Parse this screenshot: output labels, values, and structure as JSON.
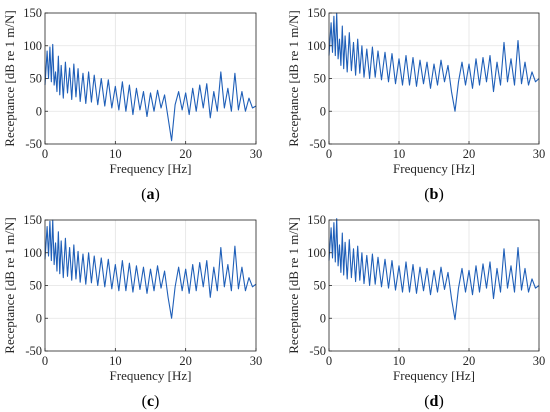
{
  "chart_data": [
    {
      "type": "line",
      "panel_label_open": "(",
      "panel_label": "a",
      "panel_label_close": ")",
      "xlabel": "Frequency [Hz]",
      "ylabel": "Receptance [dB re 1 m/N]",
      "xlim": [
        0,
        30
      ],
      "ylim": [
        -50,
        150
      ],
      "xticks": [
        0,
        10,
        20,
        30
      ],
      "yticks": [
        -50,
        0,
        50,
        100,
        150
      ],
      "grid": true,
      "series": [
        {
          "color": "#1f5fb8",
          "x": [
            0,
            0.3,
            0.5,
            0.7,
            0.9,
            1.1,
            1.3,
            1.5,
            1.7,
            1.9,
            2.1,
            2.3,
            2.6,
            2.9,
            3.2,
            3.5,
            3.8,
            4.1,
            4.4,
            4.7,
            5.0,
            5.4,
            5.8,
            6.2,
            6.6,
            7.0,
            7.5,
            8.0,
            8.5,
            9.0,
            9.5,
            10.0,
            10.5,
            11.0,
            11.5,
            12.0,
            12.5,
            13.0,
            13.5,
            14.0,
            14.5,
            15.0,
            15.5,
            16.0,
            16.5,
            17.0,
            17.5,
            18.0,
            18.5,
            19.0,
            19.5,
            20.0,
            20.5,
            21.0,
            21.5,
            22.0,
            22.5,
            23.0,
            23.5,
            24.0,
            24.5,
            25.0,
            25.5,
            26.0,
            26.5,
            27.0,
            27.5,
            28.0,
            28.5,
            29.0,
            29.5,
            30.0
          ],
          "y": [
            40,
            92,
            50,
            98,
            45,
            102,
            40,
            60,
            30,
            84,
            25,
            70,
            20,
            75,
            28,
            66,
            18,
            72,
            22,
            65,
            15,
            58,
            12,
            60,
            14,
            55,
            10,
            50,
            8,
            48,
            5,
            38,
            2,
            45,
            0,
            40,
            -5,
            35,
            2,
            30,
            -8,
            28,
            0,
            32,
            5,
            25,
            -10,
            -45,
            10,
            30,
            2,
            28,
            -5,
            35,
            0,
            40,
            5,
            42,
            -10,
            30,
            0,
            60,
            5,
            35,
            0,
            58,
            2,
            30,
            0,
            20,
            5,
            8
          ]
        }
      ]
    },
    {
      "type": "line",
      "panel_label_open": "(",
      "panel_label": "b",
      "panel_label_close": ")",
      "xlabel": "Frequency [Hz]",
      "ylabel": "Receptance [dB re 1 m/N]",
      "xlim": [
        0,
        30
      ],
      "ylim": [
        -50,
        150
      ],
      "xticks": [
        0,
        10,
        20,
        30
      ],
      "yticks": [
        -50,
        0,
        50,
        100,
        150
      ],
      "grid": true,
      "series": [
        {
          "color": "#1f5fb8",
          "x": [
            0,
            0.3,
            0.5,
            0.7,
            0.9,
            1.1,
            1.3,
            1.5,
            1.7,
            1.9,
            2.1,
            2.3,
            2.6,
            2.9,
            3.2,
            3.5,
            3.8,
            4.1,
            4.4,
            4.7,
            5.0,
            5.4,
            5.8,
            6.2,
            6.6,
            7.0,
            7.5,
            8.0,
            8.5,
            9.0,
            9.5,
            10.0,
            10.5,
            11.0,
            11.5,
            12.0,
            12.5,
            13.0,
            13.5,
            14.0,
            14.5,
            15.0,
            15.5,
            16.0,
            16.5,
            17.0,
            17.5,
            18.0,
            18.5,
            19.0,
            19.5,
            20.0,
            20.5,
            21.0,
            21.5,
            22.0,
            22.5,
            23.0,
            23.5,
            24.0,
            24.5,
            25.0,
            25.5,
            26.0,
            26.5,
            27.0,
            27.5,
            28.0,
            28.5,
            29.0,
            29.5,
            30.0
          ],
          "y": [
            85,
            135,
            90,
            145,
            85,
            150,
            80,
            110,
            70,
            130,
            65,
            115,
            60,
            120,
            62,
            105,
            55,
            110,
            58,
            100,
            52,
            95,
            50,
            98,
            52,
            92,
            48,
            90,
            45,
            88,
            42,
            80,
            40,
            85,
            40,
            82,
            38,
            78,
            42,
            75,
            35,
            72,
            40,
            78,
            45,
            70,
            30,
            0,
            45,
            75,
            40,
            72,
            35,
            80,
            40,
            82,
            45,
            85,
            30,
            75,
            40,
            105,
            45,
            80,
            40,
            108,
            42,
            75,
            40,
            60,
            45,
            50
          ]
        }
      ]
    },
    {
      "type": "line",
      "panel_label_open": "(",
      "panel_label": "c",
      "panel_label_close": ")",
      "xlabel": "Frequency [Hz]",
      "ylabel": "Receptance [dB re 1 m/N]",
      "xlim": [
        0,
        30
      ],
      "ylim": [
        -50,
        150
      ],
      "xticks": [
        0,
        10,
        20,
        30
      ],
      "yticks": [
        -50,
        0,
        50,
        100,
        150
      ],
      "grid": true,
      "series": [
        {
          "color": "#1f5fb8",
          "x": [
            0,
            0.3,
            0.5,
            0.7,
            0.9,
            1.1,
            1.3,
            1.5,
            1.7,
            1.9,
            2.1,
            2.3,
            2.6,
            2.9,
            3.2,
            3.5,
            3.8,
            4.1,
            4.4,
            4.7,
            5.0,
            5.4,
            5.8,
            6.2,
            6.6,
            7.0,
            7.5,
            8.0,
            8.5,
            9.0,
            9.5,
            10.0,
            10.5,
            11.0,
            11.5,
            12.0,
            12.5,
            13.0,
            13.5,
            14.0,
            14.5,
            15.0,
            15.5,
            16.0,
            16.5,
            17.0,
            17.5,
            18.0,
            18.5,
            19.0,
            19.5,
            20.0,
            20.5,
            21.0,
            21.5,
            22.0,
            22.5,
            23.0,
            23.5,
            24.0,
            24.5,
            25.0,
            25.5,
            26.0,
            26.5,
            27.0,
            27.5,
            28.0,
            28.5,
            29.0,
            29.5,
            30.0
          ],
          "y": [
            90,
            140,
            95,
            148,
            88,
            150,
            82,
            115,
            72,
            132,
            68,
            118,
            62,
            122,
            64,
            108,
            58,
            112,
            60,
            102,
            55,
            98,
            52,
            100,
            54,
            95,
            50,
            92,
            48,
            90,
            45,
            82,
            42,
            88,
            42,
            84,
            40,
            80,
            44,
            78,
            38,
            75,
            42,
            80,
            46,
            72,
            32,
            0,
            48,
            78,
            42,
            75,
            38,
            82,
            42,
            85,
            48,
            88,
            32,
            78,
            42,
            108,
            48,
            82,
            42,
            110,
            45,
            78,
            42,
            62,
            48,
            52
          ]
        }
      ]
    },
    {
      "type": "line",
      "panel_label_open": "(",
      "panel_label": "d",
      "panel_label_close": ")",
      "xlabel": "Frequency [Hz]",
      "ylabel": "Receptance [dB re 1 m/N]",
      "xlim": [
        0,
        30
      ],
      "ylim": [
        -50,
        150
      ],
      "xticks": [
        0,
        10,
        20,
        30
      ],
      "yticks": [
        -50,
        0,
        50,
        100,
        150
      ],
      "grid": true,
      "series": [
        {
          "color": "#1f5fb8",
          "x": [
            0,
            0.3,
            0.5,
            0.7,
            0.9,
            1.1,
            1.3,
            1.5,
            1.7,
            1.9,
            2.1,
            2.3,
            2.6,
            2.9,
            3.2,
            3.5,
            3.8,
            4.1,
            4.4,
            4.7,
            5.0,
            5.4,
            5.8,
            6.2,
            6.6,
            7.0,
            7.5,
            8.0,
            8.5,
            9.0,
            9.5,
            10.0,
            10.5,
            11.0,
            11.5,
            12.0,
            12.5,
            13.0,
            13.5,
            14.0,
            14.5,
            15.0,
            15.5,
            16.0,
            16.5,
            17.0,
            17.5,
            18.0,
            18.5,
            19.0,
            19.5,
            20.0,
            20.5,
            21.0,
            21.5,
            22.0,
            22.5,
            23.0,
            23.5,
            24.0,
            24.5,
            25.0,
            25.5,
            26.0,
            26.5,
            27.0,
            27.5,
            28.0,
            28.5,
            29.0,
            29.5,
            30.0
          ],
          "y": [
            88,
            138,
            92,
            146,
            86,
            152,
            80,
            112,
            70,
            130,
            66,
            116,
            60,
            120,
            62,
            106,
            56,
            110,
            58,
            100,
            53,
            96,
            50,
            98,
            52,
            93,
            48,
            90,
            46,
            88,
            43,
            80,
            40,
            86,
            40,
            82,
            38,
            78,
            42,
            76,
            36,
            73,
            40,
            78,
            44,
            70,
            30,
            -2,
            46,
            76,
            40,
            73,
            36,
            80,
            40,
            83,
            46,
            86,
            30,
            76,
            40,
            106,
            46,
            80,
            40,
            108,
            43,
            76,
            40,
            60,
            46,
            50
          ]
        }
      ]
    }
  ]
}
